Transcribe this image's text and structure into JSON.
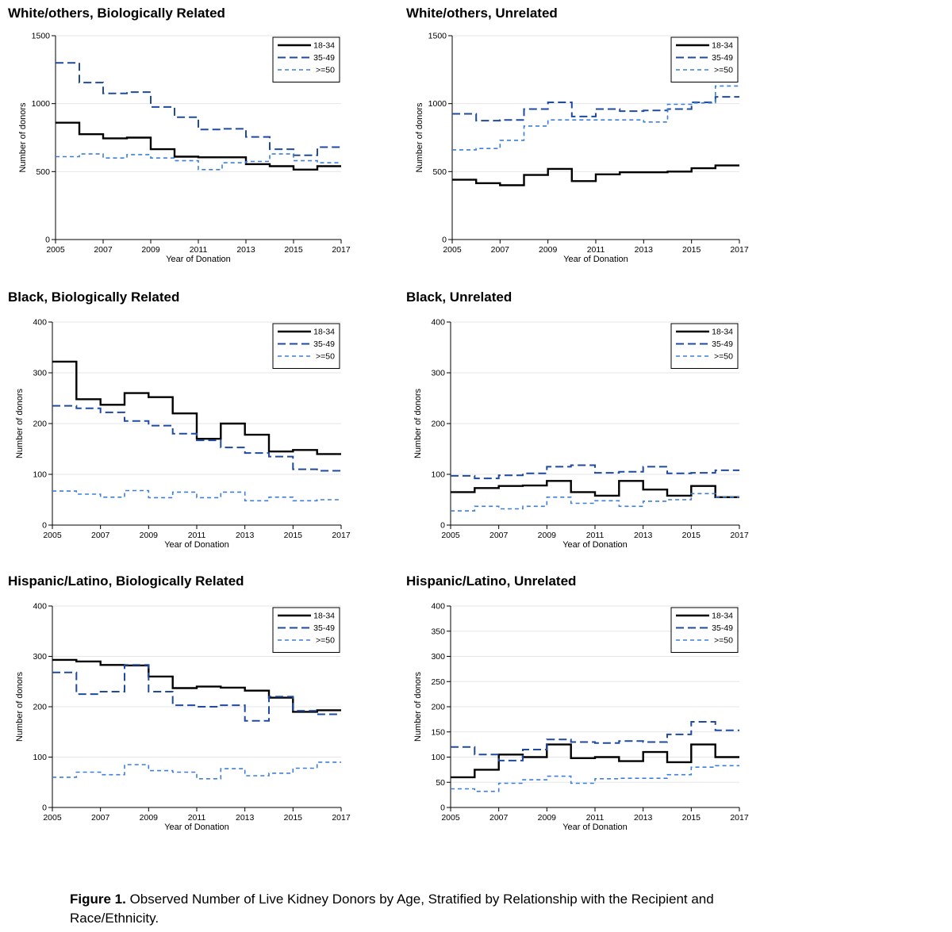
{
  "legend_colors": {
    "18-34": "#000000",
    "35-49": "#1f4aa0",
    ">=50": "#3d7fd6"
  },
  "figure": {
    "caption_label": "Figure 1.",
    "caption_text": " Observed Number of Live Kidney Donors by Age, Stratified by Relationship with the Recipient and Race/Ethnicity."
  },
  "chart_data": [
    {
      "type": "line",
      "title": "White/others, Biologically Related",
      "xlabel": "Year of Donation",
      "ylabel": "Number of donors",
      "x": [
        2005,
        2006,
        2007,
        2008,
        2009,
        2010,
        2011,
        2012,
        2013,
        2014,
        2015,
        2016,
        2017
      ],
      "xticks": [
        2005,
        2007,
        2009,
        2011,
        2013,
        2015,
        2017
      ],
      "xlim": [
        2005,
        2017
      ],
      "ylim": [
        0,
        1500
      ],
      "yticks": [
        0,
        500,
        1000,
        1500
      ],
      "legend": "top-right",
      "series": [
        {
          "name": "18-34",
          "values": [
            860,
            775,
            745,
            750,
            665,
            610,
            605,
            605,
            555,
            540,
            515,
            540,
            540
          ]
        },
        {
          "name": "35-49",
          "values": [
            1300,
            1155,
            1075,
            1085,
            975,
            900,
            810,
            815,
            755,
            665,
            620,
            680,
            680
          ]
        },
        {
          "name": ">=50",
          "values": [
            610,
            630,
            600,
            625,
            600,
            580,
            515,
            565,
            575,
            630,
            580,
            565,
            565
          ]
        }
      ]
    },
    {
      "type": "line",
      "title": "White/others, Unrelated",
      "xlabel": "Year of Donation",
      "ylabel": "Number of donors",
      "x": [
        2005,
        2006,
        2007,
        2008,
        2009,
        2010,
        2011,
        2012,
        2013,
        2014,
        2015,
        2016,
        2017
      ],
      "xticks": [
        2005,
        2007,
        2009,
        2011,
        2013,
        2015,
        2017
      ],
      "xlim": [
        2005,
        2017
      ],
      "ylim": [
        0,
        1500
      ],
      "yticks": [
        0,
        500,
        1000,
        1500
      ],
      "legend": "top-right",
      "series": [
        {
          "name": "18-34",
          "values": [
            440,
            415,
            400,
            475,
            520,
            430,
            480,
            495,
            495,
            500,
            525,
            545,
            545
          ]
        },
        {
          "name": "35-49",
          "values": [
            925,
            875,
            880,
            960,
            1010,
            905,
            960,
            945,
            950,
            960,
            1010,
            1050,
            1050
          ]
        },
        {
          "name": ">=50",
          "values": [
            660,
            670,
            730,
            835,
            880,
            880,
            880,
            880,
            865,
            995,
            1005,
            1130,
            1130
          ]
        }
      ]
    },
    {
      "type": "line",
      "title": "Black, Biologically Related",
      "xlabel": "Year of Donation",
      "ylabel": "Number of donors",
      "x": [
        2005,
        2006,
        2007,
        2008,
        2009,
        2010,
        2011,
        2012,
        2013,
        2014,
        2015,
        2016,
        2017
      ],
      "xticks": [
        2005,
        2007,
        2009,
        2011,
        2013,
        2015,
        2017
      ],
      "xlim": [
        2005,
        2017
      ],
      "ylim": [
        0,
        400
      ],
      "yticks": [
        0,
        100,
        200,
        300,
        400
      ],
      "legend": "top-right",
      "series": [
        {
          "name": "18-34",
          "values": [
            322,
            248,
            237,
            260,
            252,
            220,
            170,
            200,
            178,
            145,
            148,
            140,
            140
          ]
        },
        {
          "name": "35-49",
          "values": [
            235,
            230,
            222,
            205,
            196,
            180,
            167,
            153,
            142,
            135,
            110,
            107,
            107
          ]
        },
        {
          "name": ">=50",
          "values": [
            67,
            61,
            55,
            68,
            54,
            65,
            54,
            65,
            48,
            55,
            48,
            50,
            50
          ]
        }
      ]
    },
    {
      "type": "line",
      "title": "Black, Unrelated",
      "xlabel": "Year of Donation",
      "ylabel": "Number of donors",
      "x": [
        2005,
        2006,
        2007,
        2008,
        2009,
        2010,
        2011,
        2012,
        2013,
        2014,
        2015,
        2016,
        2017
      ],
      "xticks": [
        2005,
        2007,
        2009,
        2011,
        2013,
        2015,
        2017
      ],
      "xlim": [
        2005,
        2017
      ],
      "ylim": [
        0,
        400
      ],
      "yticks": [
        0,
        100,
        200,
        300,
        400
      ],
      "legend": "top-right",
      "series": [
        {
          "name": "18-34",
          "values": [
            65,
            73,
            77,
            78,
            87,
            65,
            58,
            87,
            70,
            58,
            77,
            55,
            55
          ]
        },
        {
          "name": "35-49",
          "values": [
            97,
            92,
            98,
            102,
            115,
            118,
            103,
            105,
            115,
            102,
            103,
            108,
            108
          ]
        },
        {
          "name": ">=50",
          "values": [
            28,
            37,
            32,
            37,
            55,
            43,
            48,
            37,
            47,
            50,
            62,
            55,
            55
          ]
        }
      ]
    },
    {
      "type": "line",
      "title": "Hispanic/Latino, Biologically Related",
      "xlabel": "Year of Donation",
      "ylabel": "Number of donors",
      "x": [
        2005,
        2006,
        2007,
        2008,
        2009,
        2010,
        2011,
        2012,
        2013,
        2014,
        2015,
        2016,
        2017
      ],
      "xticks": [
        2005,
        2007,
        2009,
        2011,
        2013,
        2015,
        2017
      ],
      "xlim": [
        2005,
        2017
      ],
      "ylim": [
        0,
        400
      ],
      "yticks": [
        0,
        100,
        200,
        300,
        400
      ],
      "legend": "top-right",
      "series": [
        {
          "name": "18-34",
          "values": [
            293,
            290,
            283,
            282,
            260,
            237,
            240,
            238,
            232,
            218,
            190,
            193,
            193
          ]
        },
        {
          "name": "35-49",
          "values": [
            268,
            225,
            230,
            283,
            230,
            203,
            200,
            203,
            172,
            220,
            192,
            185,
            185
          ]
        },
        {
          "name": ">=50",
          "values": [
            60,
            70,
            65,
            85,
            73,
            70,
            57,
            77,
            63,
            68,
            78,
            90,
            90
          ]
        }
      ]
    },
    {
      "type": "line",
      "title": "Hispanic/Latino, Unrelated",
      "xlabel": "Year of Donation",
      "ylabel": "Number of donors",
      "x": [
        2005,
        2006,
        2007,
        2008,
        2009,
        2010,
        2011,
        2012,
        2013,
        2014,
        2015,
        2016,
        2017
      ],
      "xticks": [
        2005,
        2007,
        2009,
        2011,
        2013,
        2015,
        2017
      ],
      "xlim": [
        2005,
        2017
      ],
      "ylim": [
        0,
        400
      ],
      "yticks": [
        0,
        50,
        100,
        150,
        200,
        250,
        300,
        350,
        400
      ],
      "legend": "top-right",
      "series": [
        {
          "name": "18-34",
          "values": [
            60,
            75,
            105,
            100,
            125,
            98,
            100,
            92,
            110,
            90,
            125,
            100,
            100
          ]
        },
        {
          "name": "35-49",
          "values": [
            120,
            105,
            93,
            115,
            135,
            130,
            128,
            132,
            130,
            145,
            170,
            153,
            153
          ]
        },
        {
          "name": ">=50",
          "values": [
            37,
            32,
            48,
            55,
            62,
            48,
            57,
            58,
            58,
            65,
            80,
            83,
            83
          ]
        }
      ]
    }
  ]
}
